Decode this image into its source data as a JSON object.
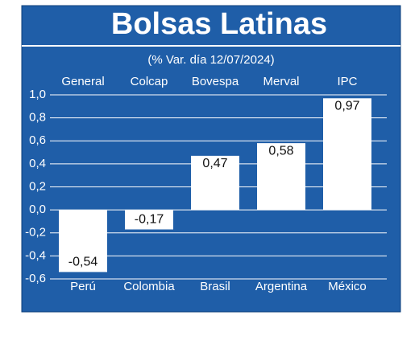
{
  "chart_data": {
    "type": "bar",
    "title": "Bolsas Latinas",
    "subtitle": "(% Var. día 12/07/2024)",
    "indices": [
      "General",
      "Colcap",
      "Bovespa",
      "Merval",
      "IPC"
    ],
    "categories": [
      "Perú",
      "Colombia",
      "Brasil",
      "Argentina",
      "México"
    ],
    "values": [
      -0.54,
      -0.17,
      0.47,
      0.58,
      0.97
    ],
    "value_labels": [
      "-0,54",
      "-0,17",
      "0,47",
      "0,58",
      "0,97"
    ],
    "color": "#ffffff",
    "background": "#1f5ea8",
    "ylim": [
      -0.6,
      1.0
    ],
    "yticks": [
      {
        "value": 1.0,
        "label": "1,0"
      },
      {
        "value": 0.8,
        "label": "0,8"
      },
      {
        "value": 0.6,
        "label": "0,6"
      },
      {
        "value": 0.4,
        "label": "0,4"
      },
      {
        "value": 0.2,
        "label": "0,2"
      },
      {
        "value": 0,
        "label": "0,0"
      },
      {
        "value": -0.2,
        "label": "-0,2"
      },
      {
        "value": -0.4,
        "label": "-0,4"
      },
      {
        "value": -0.6,
        "label": "-0,6"
      }
    ],
    "grid": true
  }
}
